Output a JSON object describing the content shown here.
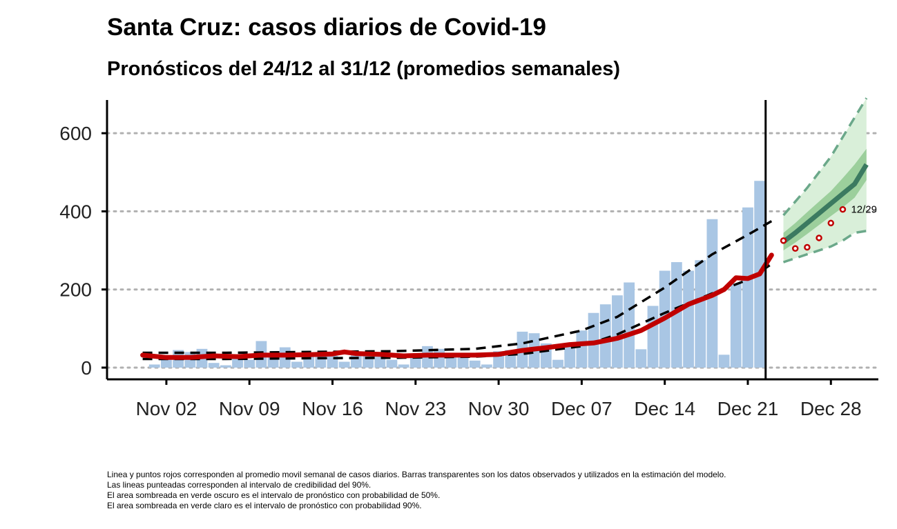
{
  "title": "Santa Cruz: casos diarios de Covid-19",
  "subtitle": "Pronósticos del 24/12 al 31/12 (promedios semanales)",
  "caption": [
    "Linea y puntos rojos corresponden al promedio movil semanal de casos diarios. Barras transparentes son los datos observados y utilizados en la estimación del modelo.",
    "Las lineas punteadas corresponden al intervalo de credibilidad del 90%.",
    "El area sombreada en verde oscuro es el intervalo de pronóstico con probabilidad de 50%.",
    "El area sombreada en verde claro es el intervalo de pronóstico con probabilidad 90%."
  ],
  "chart_data": {
    "type": "bar",
    "xlabel": "",
    "ylabel": "",
    "ylim": [
      -30,
      685
    ],
    "xlim": [
      "2020-10-28",
      "2021-01-01"
    ],
    "yticks": [
      0,
      200,
      400,
      600
    ],
    "xtick_labels": [
      "Nov 02",
      "Nov 09",
      "Nov 16",
      "Nov 23",
      "Nov 30",
      "Dec 07",
      "Dec 14",
      "Dec 21",
      "Dec 28"
    ],
    "xtick_dates": [
      "2020-11-02",
      "2020-11-09",
      "2020-11-16",
      "2020-11-23",
      "2020-11-30",
      "2020-12-07",
      "2020-12-14",
      "2020-12-21",
      "2020-12-28"
    ],
    "grid": "horizontal dotted",
    "cutoff_date": "2020-12-23",
    "colors": {
      "bars": "#a9c6e4",
      "moving_average": "#c00000",
      "credible_interval": "#000000",
      "forecast_median": "#3b7a60",
      "forecast_50": "#9ccf9c",
      "forecast_90": "#d9efd9",
      "forecast_90_bounds": "#6ba88a",
      "grid": "#b0b0b0"
    },
    "daily_cases": {
      "dates": [
        "2020-11-01",
        "2020-11-02",
        "2020-11-03",
        "2020-11-04",
        "2020-11-05",
        "2020-11-06",
        "2020-11-07",
        "2020-11-08",
        "2020-11-09",
        "2020-11-10",
        "2020-11-11",
        "2020-11-12",
        "2020-11-13",
        "2020-11-14",
        "2020-11-15",
        "2020-11-16",
        "2020-11-17",
        "2020-11-18",
        "2020-11-19",
        "2020-11-20",
        "2020-11-21",
        "2020-11-22",
        "2020-11-23",
        "2020-11-24",
        "2020-11-25",
        "2020-11-26",
        "2020-11-27",
        "2020-11-28",
        "2020-11-29",
        "2020-11-30",
        "2020-12-01",
        "2020-12-02",
        "2020-12-03",
        "2020-12-04",
        "2020-12-05",
        "2020-12-06",
        "2020-12-07",
        "2020-12-08",
        "2020-12-09",
        "2020-12-10",
        "2020-12-11",
        "2020-12-12",
        "2020-12-13",
        "2020-12-14",
        "2020-12-15",
        "2020-12-16",
        "2020-12-17",
        "2020-12-18",
        "2020-12-19",
        "2020-12-20",
        "2020-12-21",
        "2020-12-22",
        "2020-12-23"
      ],
      "values": [
        8,
        30,
        45,
        40,
        48,
        12,
        6,
        30,
        20,
        68,
        35,
        52,
        15,
        28,
        40,
        30,
        15,
        38,
        32,
        28,
        20,
        8,
        28,
        55,
        48,
        35,
        30,
        18,
        8,
        42,
        45,
        92,
        88,
        62,
        20,
        60,
        95,
        140,
        162,
        185,
        218,
        47,
        158,
        248,
        270,
        248,
        275,
        380,
        33,
        215,
        410,
        478,
        0
      ]
    },
    "moving_average": {
      "dates": [
        "2020-10-31",
        "2020-11-02",
        "2020-11-04",
        "2020-11-06",
        "2020-11-08",
        "2020-11-10",
        "2020-11-12",
        "2020-11-14",
        "2020-11-16",
        "2020-11-17",
        "2020-11-18",
        "2020-11-20",
        "2020-11-22",
        "2020-11-24",
        "2020-11-26",
        "2020-11-28",
        "2020-11-30",
        "2020-12-02",
        "2020-12-04",
        "2020-12-06",
        "2020-12-08",
        "2020-12-10",
        "2020-12-12",
        "2020-12-14",
        "2020-12-16",
        "2020-12-18",
        "2020-12-19",
        "2020-12-20",
        "2020-12-21",
        "2020-12-22",
        "2020-12-23"
      ],
      "values": [
        32,
        26,
        26,
        30,
        28,
        32,
        32,
        33,
        35,
        40,
        36,
        34,
        30,
        32,
        32,
        32,
        34,
        44,
        51,
        59,
        63,
        75,
        95,
        127,
        162,
        185,
        200,
        230,
        228,
        240,
        288
      ]
    },
    "credible_interval_upper": {
      "dates": [
        "2020-10-31",
        "2020-11-07",
        "2020-11-14",
        "2020-11-21",
        "2020-11-28",
        "2020-12-02",
        "2020-12-07",
        "2020-12-10",
        "2020-12-14",
        "2020-12-18",
        "2020-12-21",
        "2020-12-23"
      ],
      "values": [
        38,
        38,
        40,
        42,
        48,
        62,
        95,
        130,
        205,
        290,
        340,
        375
      ]
    },
    "credible_interval_lower": {
      "dates": [
        "2020-10-31",
        "2020-11-07",
        "2020-11-14",
        "2020-11-21",
        "2020-11-28",
        "2020-12-02",
        "2020-12-07",
        "2020-12-10",
        "2020-12-14",
        "2020-12-18",
        "2020-12-21",
        "2020-12-23"
      ],
      "values": [
        22,
        22,
        24,
        25,
        28,
        35,
        55,
        85,
        140,
        190,
        225,
        265
      ]
    },
    "forecast": {
      "dates": [
        "2020-12-24",
        "2020-12-25",
        "2020-12-26",
        "2020-12-27",
        "2020-12-28",
        "2020-12-29",
        "2020-12-30",
        "2020-12-31"
      ],
      "median": [
        322,
        345,
        370,
        395,
        420,
        445,
        470,
        520
      ],
      "p25": [
        300,
        320,
        342,
        365,
        388,
        410,
        435,
        480
      ],
      "p75": [
        345,
        370,
        398,
        425,
        452,
        485,
        520,
        560
      ],
      "p5": [
        270,
        280,
        290,
        300,
        310,
        325,
        345,
        350
      ],
      "p95": [
        390,
        425,
        460,
        500,
        540,
        590,
        640,
        690
      ]
    },
    "forecast_points": {
      "dates": [
        "2020-12-24",
        "2020-12-25",
        "2020-12-26",
        "2020-12-27",
        "2020-12-28",
        "2020-12-29"
      ],
      "values": [
        325,
        305,
        308,
        332,
        370,
        405
      ]
    },
    "annotations": [
      {
        "date": "2020-12-29",
        "value": 405,
        "text": "12/29"
      }
    ]
  }
}
